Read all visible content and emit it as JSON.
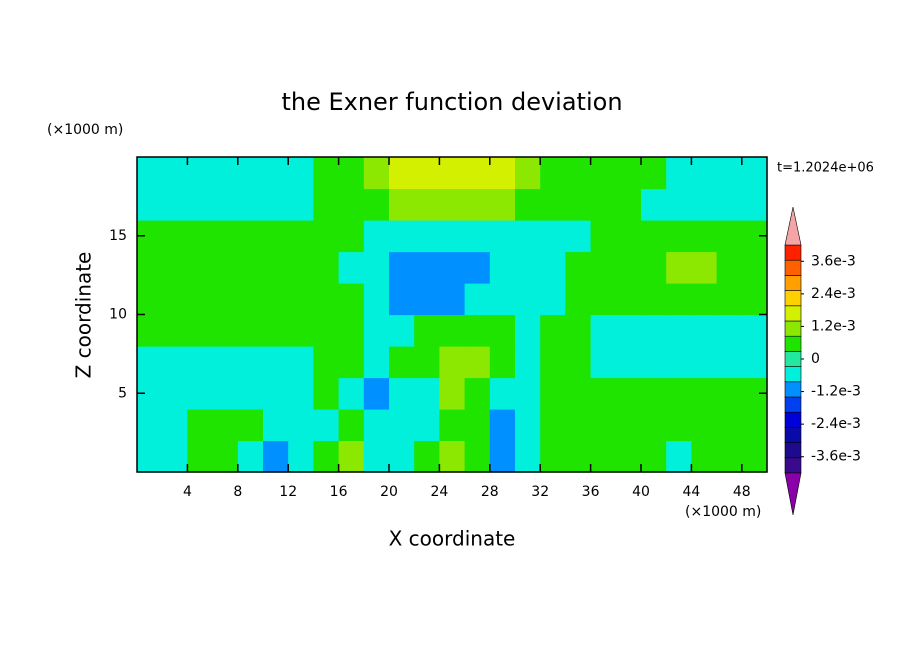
{
  "chart_data": {
    "type": "contour",
    "title": "the Exner function deviation",
    "x_label": "X coordinate",
    "y_label": "Z coordinate",
    "x_unit": "(×1000 m)",
    "y_unit": "(×1000 m)",
    "annotation": "t=1.2024e+06",
    "xlim": [
      0,
      50
    ],
    "ylim": [
      0,
      20
    ],
    "xticks": [
      4,
      8,
      12,
      16,
      20,
      24,
      28,
      32,
      36,
      40,
      44,
      48
    ],
    "yticks": [
      5,
      10,
      15
    ],
    "x": [
      1,
      3,
      5,
      7,
      9,
      11,
      13,
      15,
      17,
      19,
      21,
      23,
      25,
      27,
      29,
      31,
      33,
      35,
      37,
      39,
      41,
      43,
      45,
      47,
      49
    ],
    "z": [
      1,
      3,
      5,
      7,
      9,
      11,
      13,
      15,
      17,
      19
    ],
    "values": [
      [
        -0.0003,
        -0.0003,
        0.0003,
        0.0003,
        -0.0003,
        -0.0009,
        -0.0003,
        0.0003,
        0.0009,
        -0.0003,
        -0.0003,
        0.0003,
        0.0009,
        0.0003,
        -0.0009,
        -0.0003,
        0.0003,
        0.0003,
        0.0003,
        0.0003,
        0.0003,
        -0.0003,
        0.0003,
        0.0003,
        0.0003
      ],
      [
        -0.0003,
        -0.0003,
        0.0003,
        0.0003,
        0.0003,
        -0.0003,
        -0.0003,
        -0.0003,
        0.0003,
        -0.0003,
        -0.0003,
        -0.0003,
        0.0003,
        0.0003,
        -0.0009,
        -0.0003,
        0.0003,
        0.0003,
        0.0003,
        0.0003,
        0.0003,
        0.0003,
        0.0003,
        0.0003,
        0.0003
      ],
      [
        -0.0003,
        -0.0003,
        -0.0003,
        -0.0003,
        -0.0003,
        -0.0003,
        -0.0003,
        0.0003,
        -0.0003,
        -0.0009,
        -0.0003,
        -0.0003,
        0.0009,
        0.0003,
        -0.0003,
        -0.0003,
        0.0003,
        0.0003,
        0.0003,
        0.0003,
        0.0003,
        0.0003,
        0.0003,
        0.0003,
        0.0003
      ],
      [
        -0.0003,
        -0.0003,
        -0.0003,
        -0.0003,
        -0.0003,
        -0.0003,
        -0.0003,
        0.0003,
        0.0003,
        -0.0003,
        0.0003,
        0.0003,
        0.0009,
        0.0009,
        0.0003,
        -0.0003,
        0.0003,
        0.0003,
        -0.0003,
        -0.0003,
        -0.0003,
        -0.0003,
        -0.0003,
        -0.0003,
        -0.0003
      ],
      [
        0.0003,
        0.0003,
        0.0003,
        0.0003,
        0.0003,
        0.0003,
        0.0003,
        0.0003,
        0.0003,
        -0.0003,
        -0.0003,
        0.0003,
        0.0003,
        0.0003,
        0.0003,
        -0.0003,
        0.0003,
        0.0003,
        -0.0003,
        -0.0003,
        -0.0003,
        -0.0003,
        -0.0003,
        -0.0003,
        -0.0003
      ],
      [
        0.0003,
        0.0003,
        0.0003,
        0.0003,
        0.0003,
        0.0003,
        0.0003,
        0.0003,
        0.0003,
        -0.0003,
        -0.0009,
        -0.0009,
        -0.0009,
        -0.0003,
        -0.0003,
        -0.0003,
        -0.0003,
        0.0003,
        0.0003,
        0.0003,
        0.0003,
        0.0003,
        0.0003,
        0.0003,
        0.0003
      ],
      [
        0.0003,
        0.0003,
        0.0003,
        0.0003,
        0.0003,
        0.0003,
        0.0003,
        0.0003,
        -0.0003,
        -0.0003,
        -0.0009,
        -0.0009,
        -0.0009,
        -0.0009,
        -0.0003,
        -0.0003,
        -0.0003,
        0.0003,
        0.0003,
        0.0003,
        0.0003,
        0.0009,
        0.0009,
        0.0003,
        0.0003
      ],
      [
        0.0003,
        0.0003,
        0.0003,
        0.0003,
        0.0003,
        0.0003,
        0.0003,
        0.0003,
        0.0003,
        -0.0003,
        -0.0003,
        -0.0003,
        -0.0003,
        -0.0003,
        -0.0003,
        -0.0003,
        -0.0003,
        -0.0003,
        0.0003,
        0.0003,
        0.0003,
        0.0003,
        0.0003,
        0.0003,
        0.0003
      ],
      [
        -0.0003,
        -0.0003,
        -0.0003,
        -0.0003,
        -0.0003,
        -0.0003,
        -0.0003,
        0.0003,
        0.0003,
        0.0003,
        0.0009,
        0.0009,
        0.0009,
        0.0009,
        0.0009,
        0.0003,
        0.0003,
        0.0003,
        0.0003,
        0.0003,
        -0.0003,
        -0.0003,
        -0.0003,
        -0.0003,
        -0.0003
      ],
      [
        -0.0003,
        -0.0003,
        -0.0003,
        -0.0003,
        -0.0003,
        -0.0003,
        -0.0003,
        0.0003,
        0.0003,
        0.0009,
        0.0015,
        0.0015,
        0.0015,
        0.0015,
        0.0015,
        0.0009,
        0.0003,
        0.0003,
        0.0003,
        0.0003,
        0.0003,
        -0.0003,
        -0.0003,
        -0.0003,
        -0.0003
      ]
    ],
    "clim": [
      -0.0042,
      0.0042
    ],
    "colors": [
      "#3a0a8c",
      "#1e0a8c",
      "#0a0aa8",
      "#0000d8",
      "#0040f0",
      "#0090ff",
      "#00f0dc",
      "#22e8a0",
      "#1ee400",
      "#8ce800",
      "#d2f000",
      "#ffd000",
      "#ffa000",
      "#ff6000",
      "#ff2000"
    ],
    "under_color": "#8a00a8",
    "over_color": "#f4a4a4",
    "cbar_ticks": [
      {
        "value": 0.0036,
        "label": "3.6e-3"
      },
      {
        "value": 0.0024,
        "label": "2.4e-3"
      },
      {
        "value": 0.0012,
        "label": "1.2e-3"
      },
      0,
      {
        "value": -0.0012,
        "label": "-1.2e-3"
      },
      {
        "value": -0.0024,
        "label": "-2.4e-3"
      },
      {
        "value": -0.0036,
        "label": "-3.6e-3"
      }
    ]
  }
}
